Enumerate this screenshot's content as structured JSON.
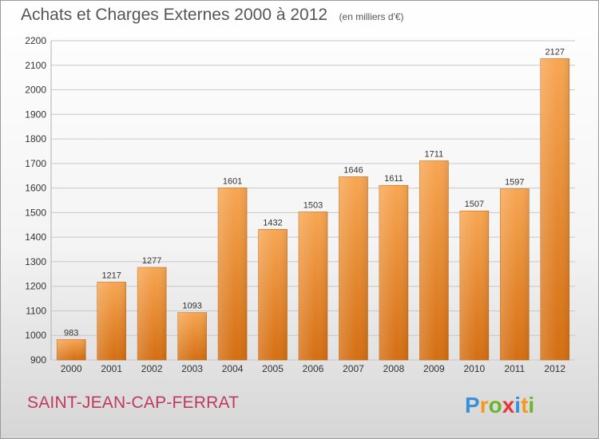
{
  "chart": {
    "title": "Achats et Charges Externes 2000 à 2012",
    "subtitle": "(en milliers d'€)"
  },
  "location": "SAINT-JEAN-CAP-FERRAT",
  "logo": {
    "text": "Proxiti"
  },
  "colors": {
    "bar_top": "#f7a652",
    "bar_bottom": "#d46e12",
    "location_text": "#c0395f",
    "grid": "#c8c8c8"
  },
  "chart_data": {
    "type": "bar",
    "categories": [
      "2000",
      "2001",
      "2002",
      "2003",
      "2004",
      "2005",
      "2006",
      "2007",
      "2008",
      "2009",
      "2010",
      "2011",
      "2012"
    ],
    "values": [
      983,
      1217,
      1277,
      1093,
      1601,
      1432,
      1503,
      1646,
      1611,
      1711,
      1507,
      1597,
      2127
    ],
    "title": "Achats et Charges Externes 2000 à 2012",
    "subtitle": "(en milliers d'€)",
    "ylim": [
      900,
      2200
    ],
    "yticks": [
      900,
      1000,
      1100,
      1200,
      1300,
      1400,
      1500,
      1600,
      1700,
      1800,
      1900,
      2000,
      2100,
      2200
    ],
    "grid": true,
    "data_labels": true
  }
}
